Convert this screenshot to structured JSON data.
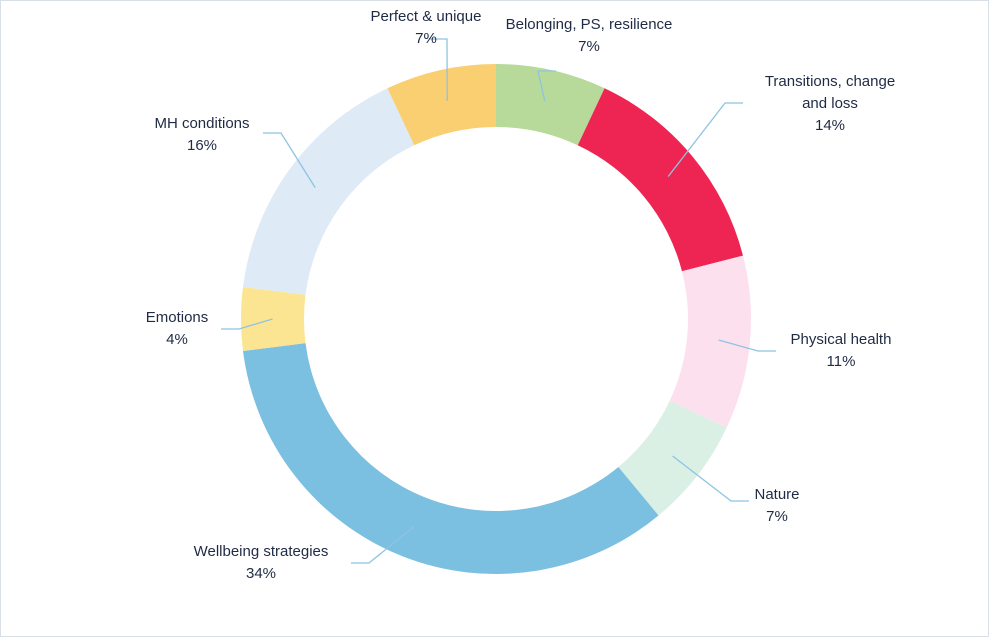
{
  "chart_data": {
    "type": "pie",
    "variant": "donut",
    "title": "",
    "slices": [
      {
        "name": "Belonging, PS, resilience",
        "value": 7,
        "label": "7%",
        "color": "#b7d99a"
      },
      {
        "name": "Transitions, change and loss",
        "value": 14,
        "label": "14%",
        "color": "#ee2552"
      },
      {
        "name": "Physical health",
        "value": 11,
        "label": "11%",
        "color": "#fde0ee"
      },
      {
        "name": "Nature",
        "value": 7,
        "label": "7%",
        "color": "#daf0e5"
      },
      {
        "name": "Wellbeing strategies",
        "value": 34,
        "label": "34%",
        "color": "#7bbfe1"
      },
      {
        "name": "Emotions",
        "value": 4,
        "label": "4%",
        "color": "#fce592"
      },
      {
        "name": "MH conditions",
        "value": 16,
        "label": "16%",
        "color": "#dfeaf7"
      },
      {
        "name": "Perfect & unique",
        "value": 7,
        "label": "7%",
        "color": "#f9cf72"
      }
    ],
    "leader_line_color": "#8ec4e2",
    "legend": "none"
  }
}
